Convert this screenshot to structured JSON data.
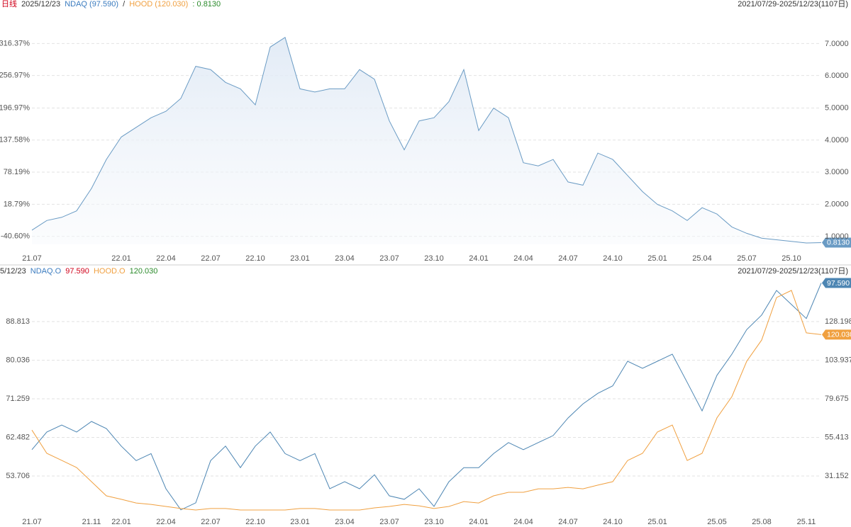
{
  "chart_data": [
    {
      "type": "area",
      "header": [
        "日线",
        "2025/12/23",
        "NDAQ (97.590)",
        "/",
        "HOOD (120.030)",
        ": 0.8130"
      ],
      "range_label": "2021/07/29-2025/12/23(1107日)",
      "x": [
        "2021-07",
        "2021-08",
        "2021-09",
        "2021-10",
        "2021-11",
        "2021-12",
        "2022-01",
        "2022-02",
        "2022-03",
        "2022-04",
        "2022-05",
        "2022-06",
        "2022-07",
        "2022-08",
        "2022-09",
        "2022-10",
        "2022-11",
        "2022-12",
        "2023-01",
        "2023-02",
        "2023-03",
        "2023-04",
        "2023-05",
        "2023-06",
        "2023-07",
        "2023-08",
        "2023-09",
        "2023-10",
        "2023-11",
        "2023-12",
        "2024-01",
        "2024-02",
        "2024-03",
        "2024-04",
        "2024-05",
        "2024-06",
        "2024-07",
        "2024-08",
        "2024-09",
        "2024-10",
        "2024-11",
        "2024-12",
        "2025-01",
        "2025-02",
        "2025-03",
        "2025-04",
        "2025-05",
        "2025-06",
        "2025-07",
        "2025-08",
        "2025-09",
        "2025-10",
        "2025-11",
        "2025-12"
      ],
      "xlim": [
        "2021-07",
        "2025-12"
      ],
      "xticks": [
        {
          "value": "2021-07",
          "label": "21.07"
        },
        {
          "value": "2022-01",
          "label": "22.01"
        },
        {
          "value": "2022-04",
          "label": "22.04"
        },
        {
          "value": "2022-07",
          "label": "22.07"
        },
        {
          "value": "2022-10",
          "label": "22.10"
        },
        {
          "value": "2023-01",
          "label": "23.01"
        },
        {
          "value": "2023-04",
          "label": "23.04"
        },
        {
          "value": "2023-07",
          "label": "23.07"
        },
        {
          "value": "2023-10",
          "label": "23.10"
        },
        {
          "value": "2024-01",
          "label": "24.01"
        },
        {
          "value": "2024-04",
          "label": "24.04"
        },
        {
          "value": "2024-07",
          "label": "24.07"
        },
        {
          "value": "2024-10",
          "label": "24.10"
        },
        {
          "value": "2025-01",
          "label": "25.01"
        },
        {
          "value": "2025-04",
          "label": "25.04"
        },
        {
          "value": "2025-07",
          "label": "25.07"
        },
        {
          "value": "2025-10",
          "label": "25.10"
        }
      ],
      "ylim": [
        -55.45,
        381.1
      ],
      "yticks": [
        {
          "value": -40.6,
          "label": "-40.60%"
        },
        {
          "value": 18.79,
          "label": "18.79%"
        },
        {
          "value": 78.19,
          "label": "78.19%"
        },
        {
          "value": 137.58,
          "label": "137.58%"
        },
        {
          "value": 196.97,
          "label": "196.97%"
        },
        {
          "value": 256.97,
          "label": "256.97%"
        },
        {
          "value": 316.37,
          "label": "316.37%"
        }
      ],
      "y2lim": [
        0.757,
        8.1
      ],
      "y2ticks": [
        {
          "value": 1,
          "label": "1.0000"
        },
        {
          "value": 2,
          "label": "2.0000"
        },
        {
          "value": 3,
          "label": "3.0000"
        },
        {
          "value": 4,
          "label": "4.0000"
        },
        {
          "value": 5,
          "label": "5.0000"
        },
        {
          "value": 6,
          "label": "6.0000"
        },
        {
          "value": 7,
          "label": "7.0000"
        }
      ],
      "grid": true,
      "series": [
        {
          "color": "#6a9bc4",
          "axis": "y2",
          "end_label": "0.8130",
          "values": [
            1.2,
            1.5,
            1.6,
            1.8,
            2.5,
            3.4,
            4.1,
            4.4,
            4.7,
            4.9,
            5.3,
            6.3,
            6.2,
            5.8,
            5.6,
            5.1,
            6.9,
            7.2,
            5.6,
            5.5,
            5.6,
            5.6,
            6.2,
            5.9,
            4.6,
            3.7,
            4.6,
            4.7,
            5.2,
            6.2,
            4.3,
            5.0,
            4.7,
            3.3,
            3.2,
            3.4,
            2.7,
            2.6,
            3.6,
            3.4,
            2.9,
            2.4,
            2.0,
            1.8,
            1.5,
            1.9,
            1.7,
            1.3,
            1.1,
            0.95,
            0.9,
            0.85,
            0.8,
            0.813
          ]
        }
      ]
    },
    {
      "type": "line",
      "header": [
        "5/12/23"
      ],
      "range_label": "2021/07/29-2025/12/23(1107日)",
      "x": [
        "2021-07",
        "2021-08",
        "2021-09",
        "2021-10",
        "2021-11",
        "2021-12",
        "2022-01",
        "2022-02",
        "2022-03",
        "2022-04",
        "2022-05",
        "2022-06",
        "2022-07",
        "2022-08",
        "2022-09",
        "2022-10",
        "2022-11",
        "2022-12",
        "2023-01",
        "2023-02",
        "2023-03",
        "2023-04",
        "2023-05",
        "2023-06",
        "2023-07",
        "2023-08",
        "2023-09",
        "2023-10",
        "2023-11",
        "2023-12",
        "2024-01",
        "2024-02",
        "2024-03",
        "2024-04",
        "2024-05",
        "2024-06",
        "2024-07",
        "2024-08",
        "2024-09",
        "2024-10",
        "2024-11",
        "2024-12",
        "2025-01",
        "2025-02",
        "2025-03",
        "2025-04",
        "2025-05",
        "2025-06",
        "2025-07",
        "2025-08",
        "2025-09",
        "2025-10",
        "2025-11",
        "2025-12"
      ],
      "xlim": [
        "2021-07",
        "2025-12"
      ],
      "xticks": [
        {
          "value": "2021-07",
          "label": "21.07"
        },
        {
          "value": "2021-11",
          "label": "21.11"
        },
        {
          "value": "2022-01",
          "label": "22.01"
        },
        {
          "value": "2022-04",
          "label": "22.04"
        },
        {
          "value": "2022-07",
          "label": "22.07"
        },
        {
          "value": "2022-10",
          "label": "22.10"
        },
        {
          "value": "2023-01",
          "label": "23.01"
        },
        {
          "value": "2023-04",
          "label": "23.04"
        },
        {
          "value": "2023-07",
          "label": "23.07"
        },
        {
          "value": "2023-10",
          "label": "23.10"
        },
        {
          "value": "2024-01",
          "label": "24.01"
        },
        {
          "value": "2024-04",
          "label": "24.04"
        },
        {
          "value": "2024-07",
          "label": "24.07"
        },
        {
          "value": "2024-10",
          "label": "24.10"
        },
        {
          "value": "2025-01",
          "label": "25.01"
        },
        {
          "value": "2025-05",
          "label": "25.05"
        },
        {
          "value": "2025-08",
          "label": "25.08"
        },
        {
          "value": "2025-11",
          "label": "25.11"
        }
      ],
      "ylim": [
        45.17,
        99.12
      ],
      "yticks": [
        53.706,
        62.482,
        71.259,
        80.036,
        88.813
      ],
      "y2lim": [
        7.56,
        156.69
      ],
      "y2ticks": [
        31.152,
        55.413,
        79.675,
        103.937,
        128.198
      ],
      "grid": true,
      "series": [
        {
          "name": "NDAQ.O",
          "color": "#4d86b3",
          "end_label": "97.590",
          "values": [
            59.7,
            63.7,
            65.3,
            63.7,
            66.1,
            64.5,
            60.5,
            57.2,
            58.8,
            50.8,
            46.0,
            47.6,
            57.2,
            60.5,
            55.6,
            60.5,
            63.7,
            58.8,
            57.2,
            58.8,
            50.8,
            52.4,
            50.8,
            54.0,
            49.2,
            48.4,
            50.8,
            46.8,
            52.4,
            55.6,
            55.6,
            58.8,
            61.3,
            59.7,
            61.3,
            62.9,
            66.9,
            70.1,
            72.5,
            74.2,
            79.8,
            78.2,
            79.8,
            81.4,
            75.0,
            68.5,
            76.6,
            81.4,
            87.0,
            90.3,
            95.9,
            92.7,
            89.5,
            97.59
          ]
        },
        {
          "name": "HOOD.O",
          "color": "#f0a040",
          "axis": "y2",
          "end_label": "120.030",
          "values": [
            60,
            45.4,
            41.0,
            36.5,
            27.6,
            18.7,
            16.5,
            14.2,
            13.3,
            12.0,
            10.7,
            9.8,
            10.7,
            10.7,
            9.8,
            9.8,
            9.8,
            9.8,
            10.7,
            10.7,
            9.8,
            9.8,
            9.8,
            11.1,
            12.0,
            13.3,
            12.4,
            10.7,
            12.0,
            15.1,
            14.2,
            18.7,
            20.9,
            20.9,
            23.1,
            23.1,
            24.0,
            23.1,
            25.4,
            27.6,
            40.9,
            45.4,
            58.8,
            63.2,
            40.9,
            45.4,
            67.7,
            81.0,
            103.3,
            116.6,
            143.3,
            147.8,
            121.1,
            120.03
          ]
        }
      ]
    }
  ]
}
